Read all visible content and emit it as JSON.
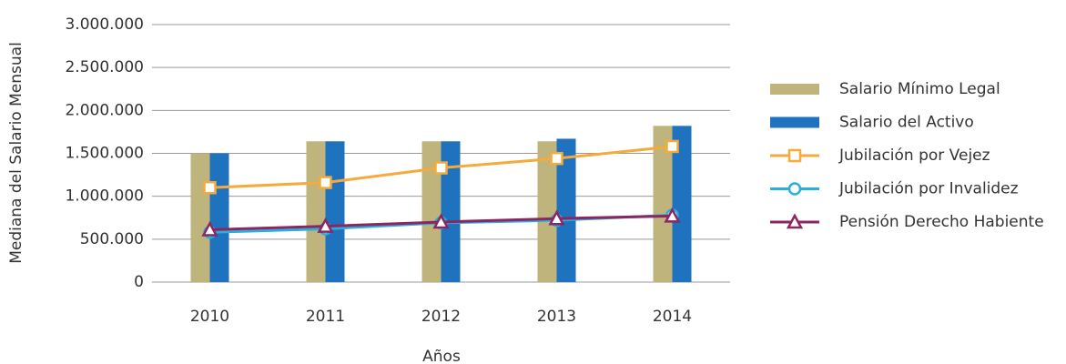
{
  "chart_data": {
    "type": "bar",
    "x_label": "Años",
    "y_label": "Mediana del Salario Mensual",
    "categories": [
      "2010",
      "2011",
      "2012",
      "2013",
      "2014"
    ],
    "ylim": [
      0,
      3000000
    ],
    "yticks": [
      0,
      {
        "value": 500000,
        "label": "500.000"
      },
      {
        "value": 1000000,
        "label": "1.000.000"
      },
      {
        "value": 1500000,
        "label": "1.500.000"
      },
      {
        "value": 2000000,
        "label": "2.000.000"
      },
      {
        "value": 2500000,
        "label": "2.500.000"
      },
      {
        "value": 3000000,
        "label": "3.000.000"
      }
    ],
    "grid": true,
    "legend": "right",
    "series": [
      {
        "name": "Salario Mínimo Legal",
        "type": "bar",
        "color": "#bfb47c",
        "values": [
          1500000,
          1640000,
          1640000,
          1640000,
          1820000
        ]
      },
      {
        "name": "Salario del Activo",
        "type": "bar",
        "color": "#1f72bd",
        "values": [
          1500000,
          1640000,
          1640000,
          1670000,
          1820000
        ]
      },
      {
        "name": "Jubilación por Vejez",
        "type": "line",
        "marker": "square",
        "color": "#f5aa3c",
        "values": [
          1100000,
          1160000,
          1330000,
          1440000,
          1580000
        ]
      },
      {
        "name": "Jubilación por Invalidez",
        "type": "line",
        "marker": "circle",
        "color": "#2aafd8",
        "values": [
          580000,
          620000,
          690000,
          720000,
          780000
        ]
      },
      {
        "name": "Pensión Derecho Habiente",
        "type": "line",
        "marker": "triangle",
        "color": "#8c2663",
        "values": [
          610000,
          650000,
          700000,
          740000,
          770000
        ]
      }
    ]
  }
}
